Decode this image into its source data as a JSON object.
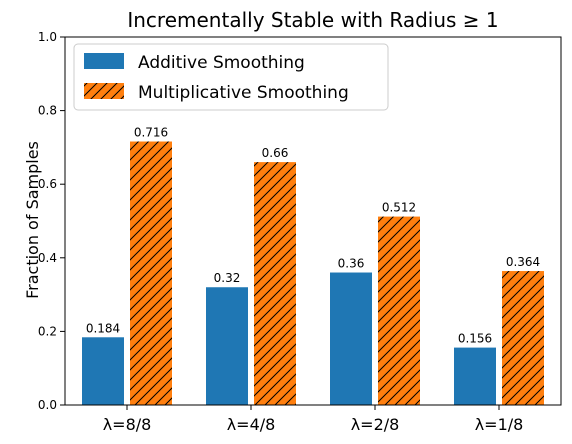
{
  "chart_data": {
    "type": "bar",
    "title": "Incrementally Stable with Radius ≥ 1",
    "xlabel": "",
    "ylabel": "Fraction of Samples",
    "ylim": [
      0,
      1.0
    ],
    "yticks": [
      "0.0",
      "0.2",
      "0.4",
      "0.6",
      "0.8",
      "1.0"
    ],
    "grid": false,
    "legend_position": "top-left",
    "categories": [
      "λ=8/8",
      "λ=4/8",
      "λ=2/8",
      "λ=1/8"
    ],
    "series": [
      {
        "name": "Additive Smoothing",
        "values": [
          0.184,
          0.32,
          0.36,
          0.156
        ],
        "labels": [
          "0.184",
          "0.32",
          "0.36",
          "0.156"
        ],
        "color": "#1f77b4",
        "hatch": "none"
      },
      {
        "name": "Multiplicative Smoothing",
        "values": [
          0.716,
          0.66,
          0.512,
          0.364
        ],
        "labels": [
          "0.716",
          "0.66",
          "0.512",
          "0.364"
        ],
        "color": "#ff7f0e",
        "hatch": "diagonal"
      }
    ]
  }
}
